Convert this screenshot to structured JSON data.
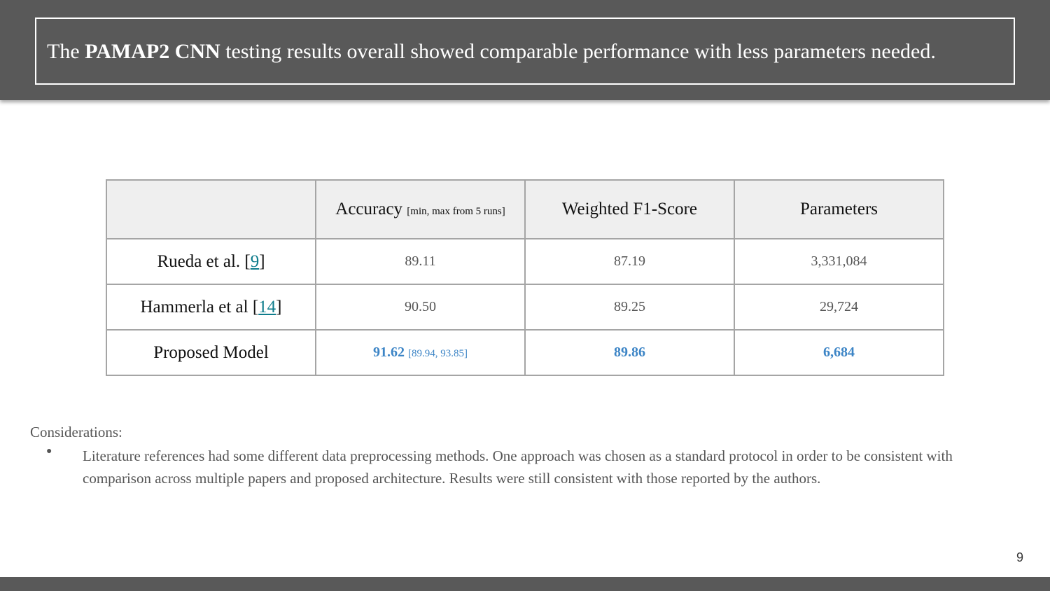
{
  "title": {
    "prefix": "The ",
    "bold": "PAMAP2 CNN",
    "suffix": " testing results overall showed comparable performance with less parameters needed."
  },
  "table": {
    "headers": [
      {
        "label": ""
      },
      {
        "label": "Accuracy",
        "note": "[min, max from 5 runs]"
      },
      {
        "label": "Weighted F1-Score"
      },
      {
        "label": "Parameters"
      }
    ],
    "rows": [
      {
        "name": "Rueda et al.",
        "ref": "9",
        "accuracy": "89.11",
        "f1": "87.19",
        "params": "3,331,084"
      },
      {
        "name": "Hammerla et al",
        "ref": "14",
        "accuracy": "90.50",
        "f1": "89.25",
        "params": "29,724"
      },
      {
        "name": "Proposed Model",
        "accuracy": "91.62",
        "range": "[89.94, 93.85]",
        "f1": "89.86",
        "params": "6,684"
      }
    ]
  },
  "considerations": {
    "heading": "Considerations:",
    "bullets": [
      "Literature references had some different data preprocessing methods. One approach was chosen as a standard protocol in order to be consistent with comparison across multiple papers and proposed architecture. Results were still consistent with those reported by the authors."
    ]
  },
  "page_number": "9",
  "colors": {
    "header_bar": "#595959",
    "highlight": "#3d85c6",
    "link": "#0e7c8c"
  }
}
